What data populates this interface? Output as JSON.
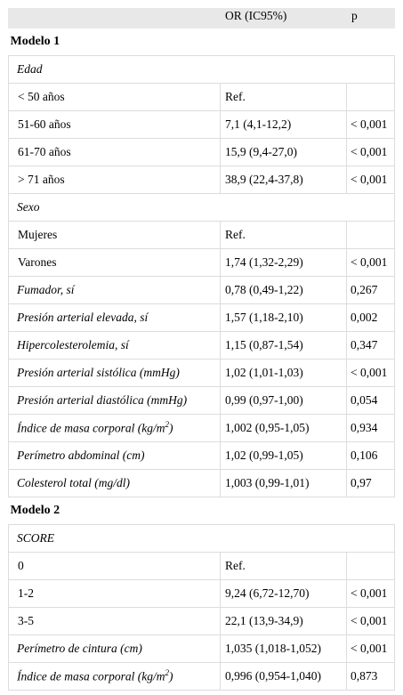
{
  "header": {
    "col1": "",
    "col2": "OR (IC95%)",
    "col3": "p"
  },
  "rows": [
    {
      "type": "model",
      "label": "Modelo 1"
    },
    {
      "type": "group",
      "label": "Edad"
    },
    {
      "type": "sub",
      "label": "< 50 años",
      "or": "Ref.",
      "p": ""
    },
    {
      "type": "sub",
      "label": "51-60 años",
      "or": "7,1 (4,1-12,2)",
      "p": "< 0,001"
    },
    {
      "type": "sub",
      "label": "61-70 años",
      "or": "15,9 (9,4-27,0)",
      "p": "< 0,001"
    },
    {
      "type": "sub",
      "label": "> 71 años",
      "or": "38,9 (22,4-37,8)",
      "p": "< 0,001"
    },
    {
      "type": "group",
      "label": "Sexo"
    },
    {
      "type": "sub",
      "label": "Mujeres",
      "or": "Ref.",
      "p": ""
    },
    {
      "type": "sub",
      "label": "Varones",
      "or": "1,74 (1,32-2,29)",
      "p": "< 0,001"
    },
    {
      "type": "var",
      "label": "Fumador, sí",
      "or": "0,78 (0,49-1,22)",
      "p": "0,267"
    },
    {
      "type": "var",
      "label": "Presión arterial elevada, sí",
      "or": "1,57 (1,18-2,10)",
      "p": "0,002"
    },
    {
      "type": "var",
      "label": "Hipercolesterolemia, sí",
      "or": "1,15 (0,87-1,54)",
      "p": "0,347"
    },
    {
      "type": "var",
      "label": "Presión arterial sistólica (mmHg)",
      "or": "1,02 (1,01-1,03)",
      "p": "< 0,001"
    },
    {
      "type": "var",
      "label": "Presión arterial diastólica (mmHg)",
      "or": "0,99 (0,97-1,00)",
      "p": "0,054"
    },
    {
      "type": "var",
      "label": "Índice de masa corporal (kg/m",
      "sup": "2",
      "label_end": ")",
      "or": "1,002 (0,95-1,05)",
      "p": "0,934"
    },
    {
      "type": "var",
      "label": "Perímetro abdominal (cm)",
      "or": "1,02 (0,99-1,05)",
      "p": "0,106"
    },
    {
      "type": "var",
      "label": "Colesterol total (mg/dl)",
      "or": "1,003 (0,99-1,01)",
      "p": "0,97"
    },
    {
      "type": "model",
      "label": "Modelo 2"
    },
    {
      "type": "group",
      "label": "SCORE"
    },
    {
      "type": "sub",
      "label": "0",
      "or": "Ref.",
      "p": ""
    },
    {
      "type": "sub",
      "label": "1-2",
      "or": "9,24 (6,72-12,70)",
      "p": "< 0,001"
    },
    {
      "type": "sub",
      "label": "3-5",
      "or": "22,1 (13,9-34,9)",
      "p": "< 0,001"
    },
    {
      "type": "var",
      "label": "Perímetro de cintura (cm)",
      "or": "1,035 (1,018-1,052)",
      "p": "< 0,001"
    },
    {
      "type": "var",
      "label": "Índice de masa corporal (kg/m",
      "sup": "2",
      "label_end": ")",
      "or": "0,996 (0,954-1,040)",
      "p": "0,873"
    }
  ]
}
